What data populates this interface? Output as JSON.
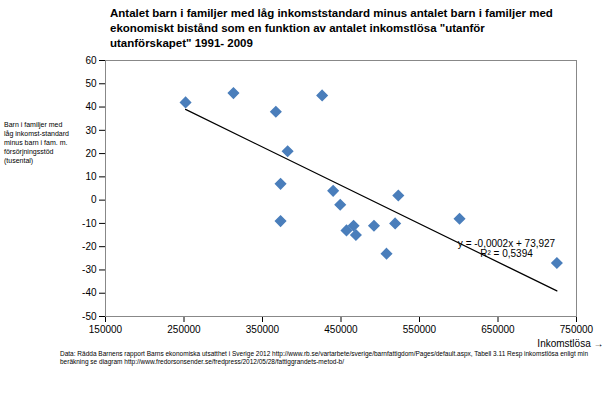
{
  "chart_data": {
    "type": "scatter",
    "title": "Antalet barn i familjer med låg inkomststandard minus antalet barn i familjer med ekonomiskt bistånd som en funktion av antalet inkomstlösa \"utanför utanförskapet\" 1991- 2009",
    "x_label": "Inkomstlösa",
    "y_label": "Barn i familjer med låg inkomst-standard minus barn i fam. m. försörjningsstöd (tusental)",
    "caption": "Data: Rädda Barnens rapport Barns ekonomiska utsatthet i Sverige 2012  http://www.rb.se/vartarbete/sverige/barnfattigdom/Pages/default.aspx, Tabell 3.11 Resp inkomstlösa enligt min beräkning se diagram http://www.fredorsonsender.se/fredpress/2012/05/28/fattiggrandets-metod-b/",
    "x": [
      252000,
      313000,
      367000,
      426000,
      382000,
      373000,
      373000,
      440000,
      449000,
      457000,
      466000,
      469000,
      492000,
      508000,
      519000,
      523000,
      601000,
      725000
    ],
    "values": [
      42,
      46,
      38,
      45,
      21,
      7,
      -9,
      4,
      -2,
      -13,
      -11,
      -15,
      -11,
      -23,
      -10,
      2,
      -8,
      -27
    ],
    "color": "#4a7ebb",
    "marker": "diamond",
    "trendline": {
      "x": [
        252000,
        725000
      ],
      "values": [
        39,
        -39
      ],
      "color": "#000000"
    },
    "annotations": [
      "y = -0,0002x + 73,927",
      "R² = 0,5394"
    ],
    "xlim": [
      150000,
      750000
    ],
    "xticks": [
      150000,
      250000,
      350000,
      450000,
      550000,
      650000,
      750000
    ],
    "ylim": [
      -50,
      60
    ],
    "yticks": [
      -50,
      -40,
      -30,
      -20,
      -10,
      0,
      10,
      20,
      30,
      40,
      50,
      60
    ],
    "grid": false
  }
}
